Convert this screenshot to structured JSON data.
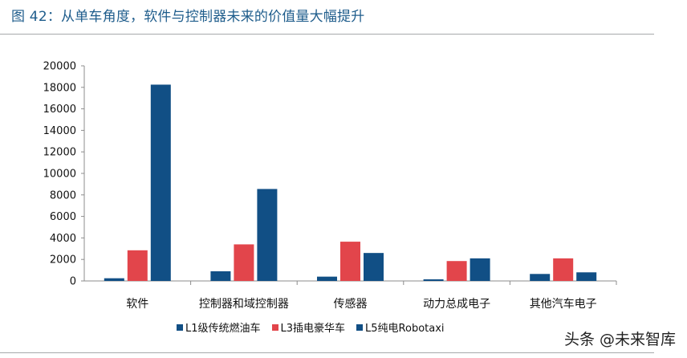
{
  "figure": {
    "title": "图 42：从单车角度，软件与控制器未来的价值量大幅提升",
    "watermark": "头条 @未来智库"
  },
  "colors": {
    "title": "#1f5d8c",
    "L1": "#114f85",
    "L3": "#e2454b",
    "L5": "#114f85"
  },
  "chart_data": {
    "type": "bar",
    "categories": [
      "软件",
      "控制器和域控制器",
      "传感器",
      "动力总成电子",
      "其他汽车电子"
    ],
    "series": [
      {
        "name": "L1级传统燃油车",
        "color": "#114f85",
        "values": [
          250,
          900,
          400,
          150,
          650
        ]
      },
      {
        "name": "L3插电豪华车",
        "color": "#e2454b",
        "values": [
          2850,
          3400,
          3650,
          1850,
          2100
        ]
      },
      {
        "name": "L5纯电Robotaxi",
        "color": "#114f85",
        "values": [
          18250,
          8550,
          2600,
          2100,
          800
        ]
      }
    ],
    "y_ticks": [
      "0",
      "2000",
      "4000",
      "6000",
      "8000",
      "10000",
      "12000",
      "14000",
      "16000",
      "18000",
      "20000"
    ],
    "ylim": [
      0,
      20000
    ],
    "grid": false,
    "legend_position": "bottom"
  }
}
